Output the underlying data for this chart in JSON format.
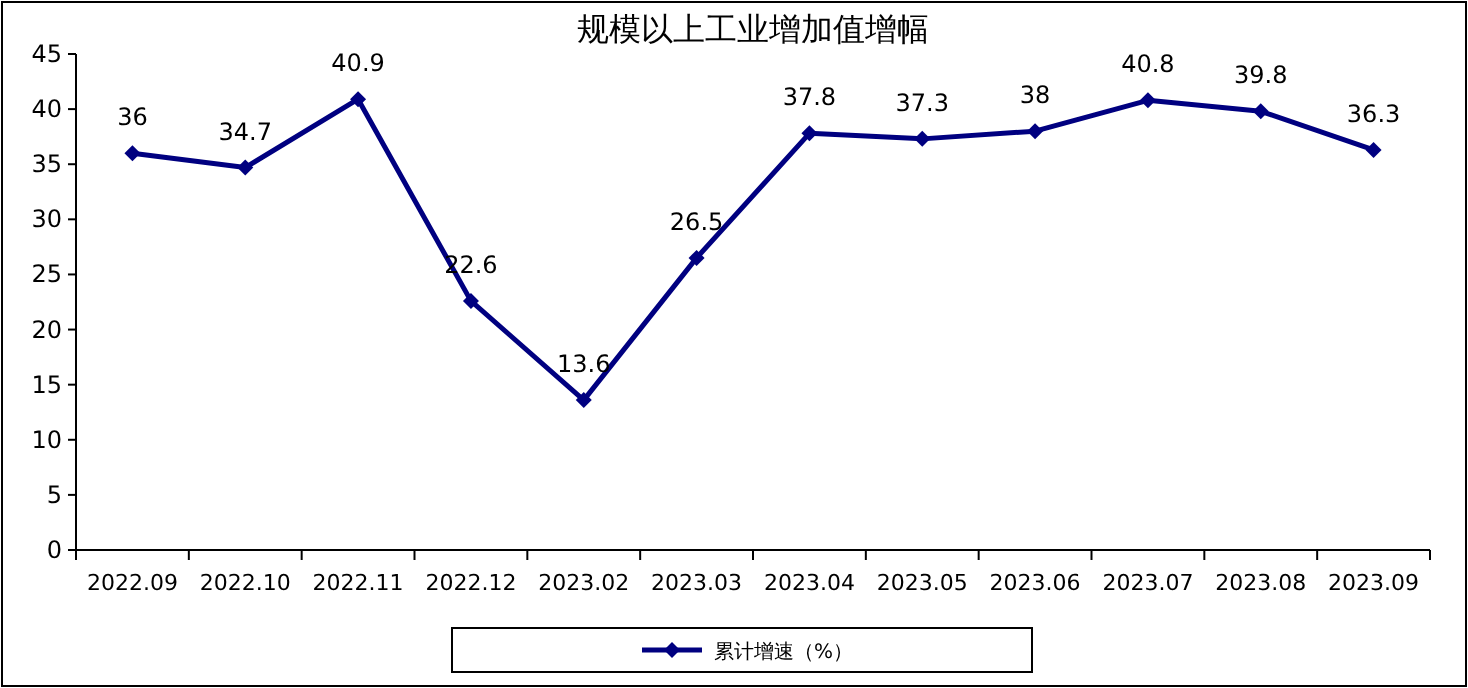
{
  "chart_data": {
    "type": "line",
    "title": "规模以上工业增加值增幅",
    "categories": [
      "2022.09",
      "2022.10",
      "2022.11",
      "2022.12",
      "2023.02",
      "2023.03",
      "2023.04",
      "2023.05",
      "2023.06",
      "2023.07",
      "2023.08",
      "2023.09"
    ],
    "series": [
      {
        "name": "累计增速（%）",
        "color": "#000080",
        "values": [
          36,
          34.7,
          40.9,
          22.6,
          13.6,
          26.5,
          37.8,
          37.3,
          38,
          40.8,
          39.8,
          36.3
        ]
      }
    ],
    "ylim": [
      0,
      45
    ],
    "yticks": [
      0,
      5,
      10,
      15,
      20,
      25,
      30,
      35,
      40,
      45
    ],
    "marker": "diamond",
    "line_style": "solid",
    "legend": "bottom",
    "data_labels": true,
    "grid": false
  }
}
